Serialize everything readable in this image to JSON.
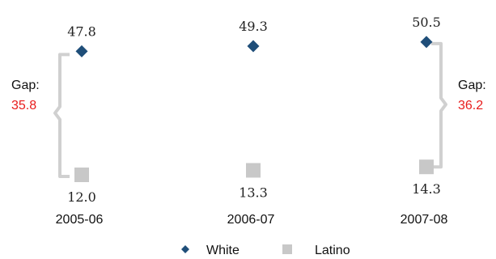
{
  "chart_data": {
    "type": "scatter",
    "categories": [
      "2005-06",
      "2006-07",
      "2007-08"
    ],
    "series": [
      {
        "name": "White",
        "values": [
          47.8,
          49.3,
          50.5
        ],
        "marker": "diamond",
        "color": "#1f4e79"
      },
      {
        "name": "Latino",
        "values": [
          12.0,
          13.3,
          14.3
        ],
        "marker": "square",
        "color": "#c8c8c8"
      }
    ],
    "value_labels": [
      [
        "47.8",
        "49.3",
        "50.5"
      ],
      [
        "12.0",
        "13.3",
        "14.3"
      ]
    ],
    "annotations": [
      {
        "category_index": 0,
        "side": "left",
        "label": "Gap:",
        "value": "35.8"
      },
      {
        "category_index": 2,
        "side": "right",
        "label": "Gap:",
        "value": "36.2"
      }
    ],
    "annotation_value_color": "#e81c1c",
    "bracket_color": "#d0d0d0",
    "legend": {
      "position": "bottom",
      "entries": [
        "White",
        "Latino"
      ]
    },
    "grid": false,
    "ylim": [
      10,
      52
    ]
  }
}
